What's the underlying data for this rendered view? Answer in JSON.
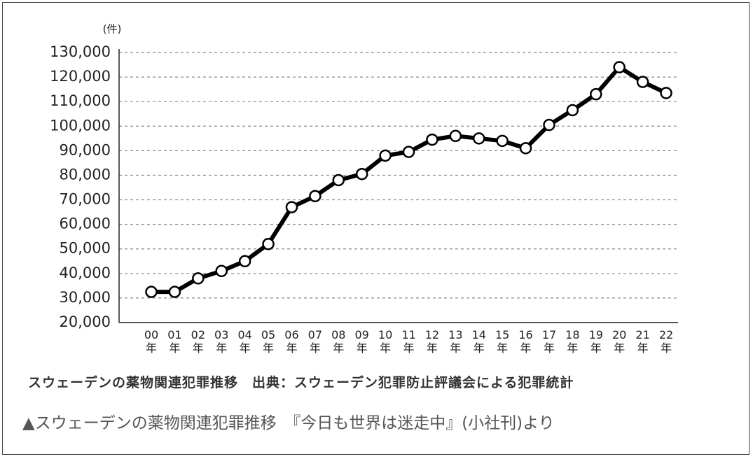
{
  "chart_data": {
    "type": "line",
    "unit_label": "(件)",
    "categories": [
      "00年",
      "01年",
      "02年",
      "03年",
      "04年",
      "05年",
      "06年",
      "07年",
      "08年",
      "09年",
      "10年",
      "11年",
      "12年",
      "13年",
      "14年",
      "15年",
      "16年",
      "17年",
      "18年",
      "19年",
      "20年",
      "21年",
      "22年"
    ],
    "values": [
      32500,
      32500,
      38000,
      41000,
      45000,
      52000,
      67000,
      71500,
      78000,
      80500,
      88000,
      89500,
      94500,
      96000,
      95000,
      94000,
      91000,
      100500,
      106500,
      113000,
      124000,
      118000,
      113500
    ],
    "color": "#000000",
    "ylim": [
      20000,
      130000
    ],
    "yticks": [
      {
        "value": 20000,
        "label": "20,000"
      },
      {
        "value": 30000,
        "label": "30,000"
      },
      {
        "value": 40000,
        "label": "40,000"
      },
      {
        "value": 50000,
        "label": "50,000"
      },
      {
        "value": 60000,
        "label": "60,000"
      },
      {
        "value": 70000,
        "label": "70,000"
      },
      {
        "value": 80000,
        "label": "80,000"
      },
      {
        "value": 90000,
        "label": "90,000"
      },
      {
        "value": 100000,
        "label": "100,000"
      },
      {
        "value": 110000,
        "label": "110,000"
      },
      {
        "value": 120000,
        "label": "120,000"
      },
      {
        "value": 130000,
        "label": "130,000"
      }
    ],
    "grid": true
  },
  "notes": {
    "source": "スウェーデンの薬物関連犯罪推移　出典：スウェーデン犯罪防止評議会による犯罪統計",
    "caption": "▲スウェーデンの薬物関連犯罪推移　『今日も世界は迷走中』(小社刊)より"
  }
}
